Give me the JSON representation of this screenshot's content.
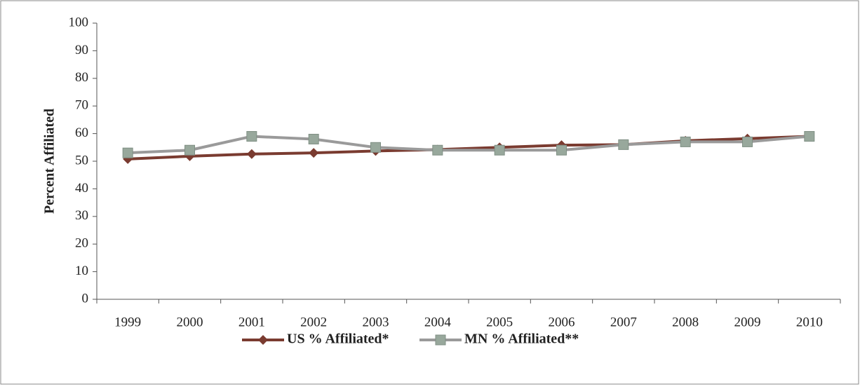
{
  "chart_data": {
    "type": "line",
    "y_label": "Percent Affiliated",
    "categories": [
      "1999",
      "2000",
      "2001",
      "2002",
      "2003",
      "2004",
      "2005",
      "2006",
      "2007",
      "2008",
      "2009",
      "2010"
    ],
    "series": [
      {
        "name": "US % Affiliated*",
        "color": "#7a3b30",
        "marker": "diamond",
        "values": [
          50.8,
          51.8,
          52.6,
          53,
          53.7,
          54.2,
          55,
          55.8,
          56,
          57.4,
          58.2,
          59
        ]
      },
      {
        "name": "MN % Affiliated**",
        "color": "#9a9a9a",
        "marker_color": "#98a89c",
        "marker": "square",
        "values": [
          53,
          54,
          59,
          58,
          55,
          54,
          54,
          54,
          56,
          57,
          57,
          59
        ]
      }
    ],
    "ylim": [
      0,
      100
    ],
    "yticks": [
      0,
      10,
      20,
      30,
      40,
      50,
      60,
      70,
      80,
      90,
      100
    ],
    "legend": "bottom"
  }
}
